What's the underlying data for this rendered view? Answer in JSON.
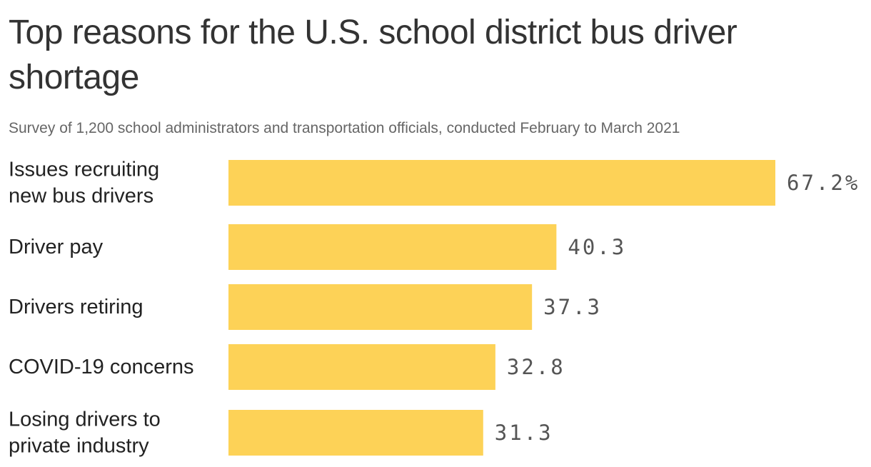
{
  "chart_data": {
    "type": "bar",
    "orientation": "horizontal",
    "title": "Top reasons for the U.S. school district bus driver shortage",
    "subtitle": "Survey of 1,200 school administrators and transportation officials, conducted February to March 2021",
    "categories": [
      [
        "Issues recruiting",
        "new bus drivers"
      ],
      [
        "Driver pay"
      ],
      [
        "Drivers retiring"
      ],
      [
        "COVID-19 concerns"
      ],
      [
        "Losing drivers to",
        "private industry"
      ]
    ],
    "values": [
      67.2,
      40.3,
      37.3,
      32.8,
      31.3
    ],
    "value_labels": [
      "67.2%",
      "40.3",
      "37.3",
      "32.8",
      "31.3"
    ],
    "xlim": [
      0,
      67.2
    ],
    "grid": false,
    "legend": "none",
    "colors": {
      "bar": "#FDD257"
    }
  }
}
